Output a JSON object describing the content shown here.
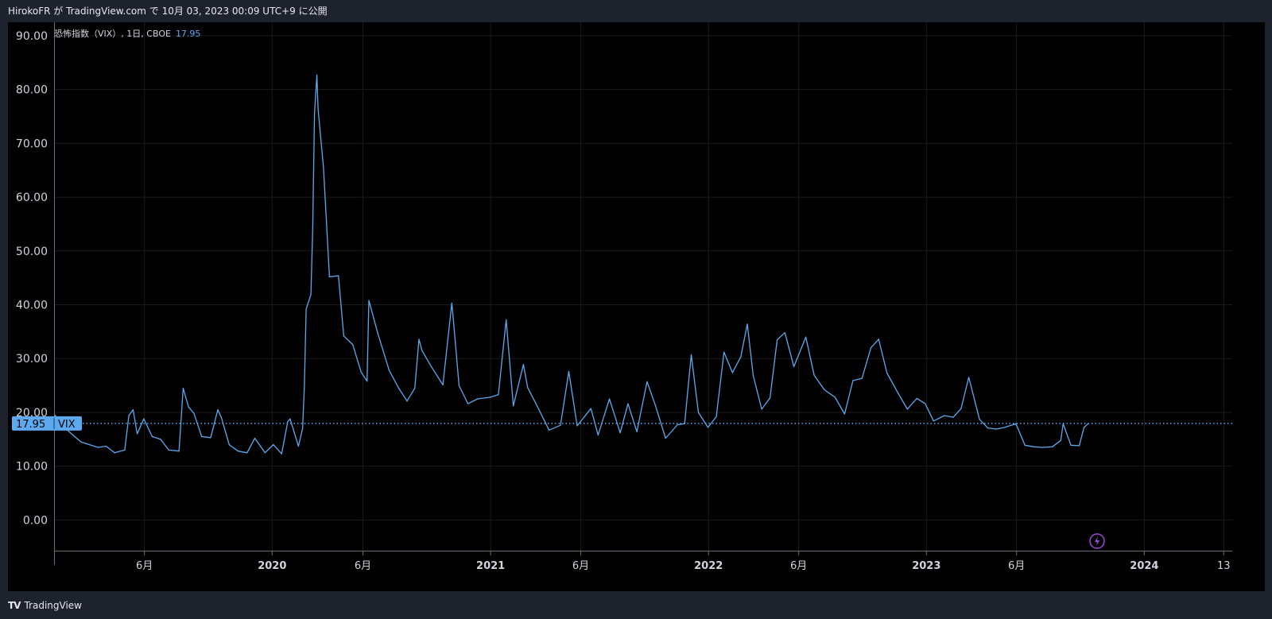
{
  "header": {
    "publish_text": "HirokoFR が TradingView.com で 10月 03, 2023 00:09 UTC+9 に公開"
  },
  "legend": {
    "symbol_text": "恐怖指数（VIX）, 1日, CBOE",
    "last_value": "17.95"
  },
  "price_badge": {
    "value": "17.95",
    "symbol": "VIX"
  },
  "footer": {
    "brand": "TradingView",
    "logo_icon": "tradingview-logo-icon"
  },
  "colors": {
    "line": "#5ca9ef",
    "grid": "#1b1b1b",
    "axis_text": "#d1d4dc",
    "badge_bg": "#5ca9ef",
    "bolt": "#9b4ad3"
  },
  "chart_data": {
    "type": "line",
    "series": [
      {
        "name": "VIX",
        "x": [
          "2019-01-02",
          "2019-01-15",
          "2019-01-30",
          "2019-02-15",
          "2019-03-01",
          "2019-03-15",
          "2019-03-29",
          "2019-04-12",
          "2019-04-29",
          "2019-05-06",
          "2019-05-13",
          "2019-05-20",
          "2019-05-31",
          "2019-06-14",
          "2019-06-28",
          "2019-07-12",
          "2019-07-29",
          "2019-08-05",
          "2019-08-14",
          "2019-08-23",
          "2019-09-05",
          "2019-09-20",
          "2019-10-02",
          "2019-10-08",
          "2019-10-21",
          "2019-11-05",
          "2019-11-20",
          "2019-12-03",
          "2019-12-20",
          "2020-01-03",
          "2020-01-17",
          "2020-01-27",
          "2020-01-31",
          "2020-02-14",
          "2020-02-21",
          "2020-02-24",
          "2020-02-27",
          "2020-03-06",
          "2020-03-09",
          "2020-03-12",
          "2020-03-16",
          "2020-03-18",
          "2020-03-27",
          "2020-04-06",
          "2020-04-21",
          "2020-04-30",
          "2020-05-15",
          "2020-05-29",
          "2020-06-08",
          "2020-06-11",
          "2020-06-26",
          "2020-07-15",
          "2020-07-31",
          "2020-08-14",
          "2020-08-27",
          "2020-09-03",
          "2020-09-08",
          "2020-09-23",
          "2020-10-13",
          "2020-10-28",
          "2020-10-30",
          "2020-11-09",
          "2020-11-24",
          "2020-12-10",
          "2020-12-31",
          "2021-01-14",
          "2021-01-27",
          "2021-02-08",
          "2021-02-25",
          "2021-03-04",
          "2021-03-18",
          "2021-04-09",
          "2021-04-28",
          "2021-05-12",
          "2021-05-26",
          "2021-06-18",
          "2021-06-30",
          "2021-07-19",
          "2021-08-06",
          "2021-08-19",
          "2021-09-03",
          "2021-09-20",
          "2021-10-04",
          "2021-10-21",
          "2021-11-10",
          "2021-11-22",
          "2021-11-30",
          "2021-12-03",
          "2021-12-15",
          "2021-12-31",
          "2022-01-14",
          "2022-01-27",
          "2022-02-10",
          "2022-02-24",
          "2022-03-07",
          "2022-03-17",
          "2022-03-31",
          "2022-04-14",
          "2022-04-26",
          "2022-05-09",
          "2022-05-24",
          "2022-06-13",
          "2022-06-27",
          "2022-07-14",
          "2022-08-01",
          "2022-08-17",
          "2022-08-31",
          "2022-09-15",
          "2022-09-30",
          "2022-10-13",
          "2022-10-27",
          "2022-11-15",
          "2022-11-30",
          "2022-12-16",
          "2022-12-30",
          "2023-01-13",
          "2023-01-31",
          "2023-02-15",
          "2023-02-28",
          "2023-03-13",
          "2023-03-31",
          "2023-04-14",
          "2023-04-28",
          "2023-05-12",
          "2023-05-31",
          "2023-06-15",
          "2023-06-30",
          "2023-07-14",
          "2023-07-31",
          "2023-08-14",
          "2023-08-18",
          "2023-08-31",
          "2023-09-14",
          "2023-09-22",
          "2023-09-29"
        ],
        "values": [
          19.5,
          17.5,
          16.0,
          14.5,
          14.0,
          13.5,
          13.7,
          12.5,
          13.0,
          19.4,
          20.5,
          16.0,
          18.8,
          15.5,
          15.0,
          13.0,
          12.8,
          24.5,
          21.0,
          19.8,
          15.5,
          15.3,
          20.5,
          19.0,
          14.0,
          12.8,
          12.5,
          15.2,
          12.5,
          14.0,
          12.3,
          18.2,
          18.8,
          13.7,
          17.0,
          25.0,
          39.2,
          41.9,
          54.5,
          75.5,
          82.7,
          76.4,
          65.5,
          45.2,
          45.4,
          34.2,
          32.6,
          27.5,
          25.8,
          40.8,
          34.7,
          27.8,
          24.5,
          22.1,
          24.5,
          33.6,
          31.5,
          28.6,
          25.1,
          40.3,
          38.0,
          25.0,
          21.6,
          22.5,
          22.8,
          23.3,
          37.2,
          21.2,
          28.9,
          24.6,
          21.6,
          16.7,
          17.6,
          27.6,
          17.5,
          20.7,
          15.8,
          22.5,
          16.2,
          21.6,
          16.4,
          25.7,
          21.3,
          15.2,
          17.7,
          17.9,
          27.2,
          30.7,
          20.0,
          17.2,
          19.2,
          31.2,
          27.4,
          30.3,
          36.4,
          26.8,
          20.6,
          22.7,
          33.5,
          34.8,
          28.5,
          34.0,
          26.9,
          24.2,
          22.8,
          19.7,
          25.9,
          26.3,
          32.0,
          33.6,
          27.3,
          23.5,
          20.6,
          22.6,
          21.6,
          18.4,
          19.4,
          19.1,
          20.7,
          26.5,
          18.7,
          17.1,
          16.9,
          17.2,
          17.9,
          13.9,
          13.6,
          13.5,
          13.6,
          14.8,
          17.9,
          13.9,
          13.8,
          17.2,
          17.9
        ],
        "last": 17.95
      }
    ],
    "xlabel": "",
    "ylabel": "",
    "ylim": [
      -5.7,
      92.5
    ],
    "y_ticks": [
      "90.00",
      "80.00",
      "70.00",
      "60.00",
      "50.00",
      "40.00",
      "30.00",
      "20.00",
      "10.00",
      "0.00"
    ],
    "x_tick_labels": [
      {
        "label": "6月",
        "date": "2019-06-01"
      },
      {
        "label": "2020",
        "date": "2020-01-01"
      },
      {
        "label": "6月",
        "date": "2020-06-01"
      },
      {
        "label": "2021",
        "date": "2021-01-01"
      },
      {
        "label": "6月",
        "date": "2021-06-01"
      },
      {
        "label": "2022",
        "date": "2022-01-01"
      },
      {
        "label": "6月",
        "date": "2022-06-01"
      },
      {
        "label": "2023",
        "date": "2023-01-01"
      },
      {
        "label": "6月",
        "date": "2023-06-01"
      },
      {
        "label": "2024",
        "date": "2024-01-01"
      },
      {
        "label": "13",
        "date": "2024-05-13"
      }
    ],
    "x_range": [
      "2019-01-02",
      "2024-05-18"
    ],
    "grid": true,
    "legend_position": "top-left",
    "price_line": 17.95
  }
}
